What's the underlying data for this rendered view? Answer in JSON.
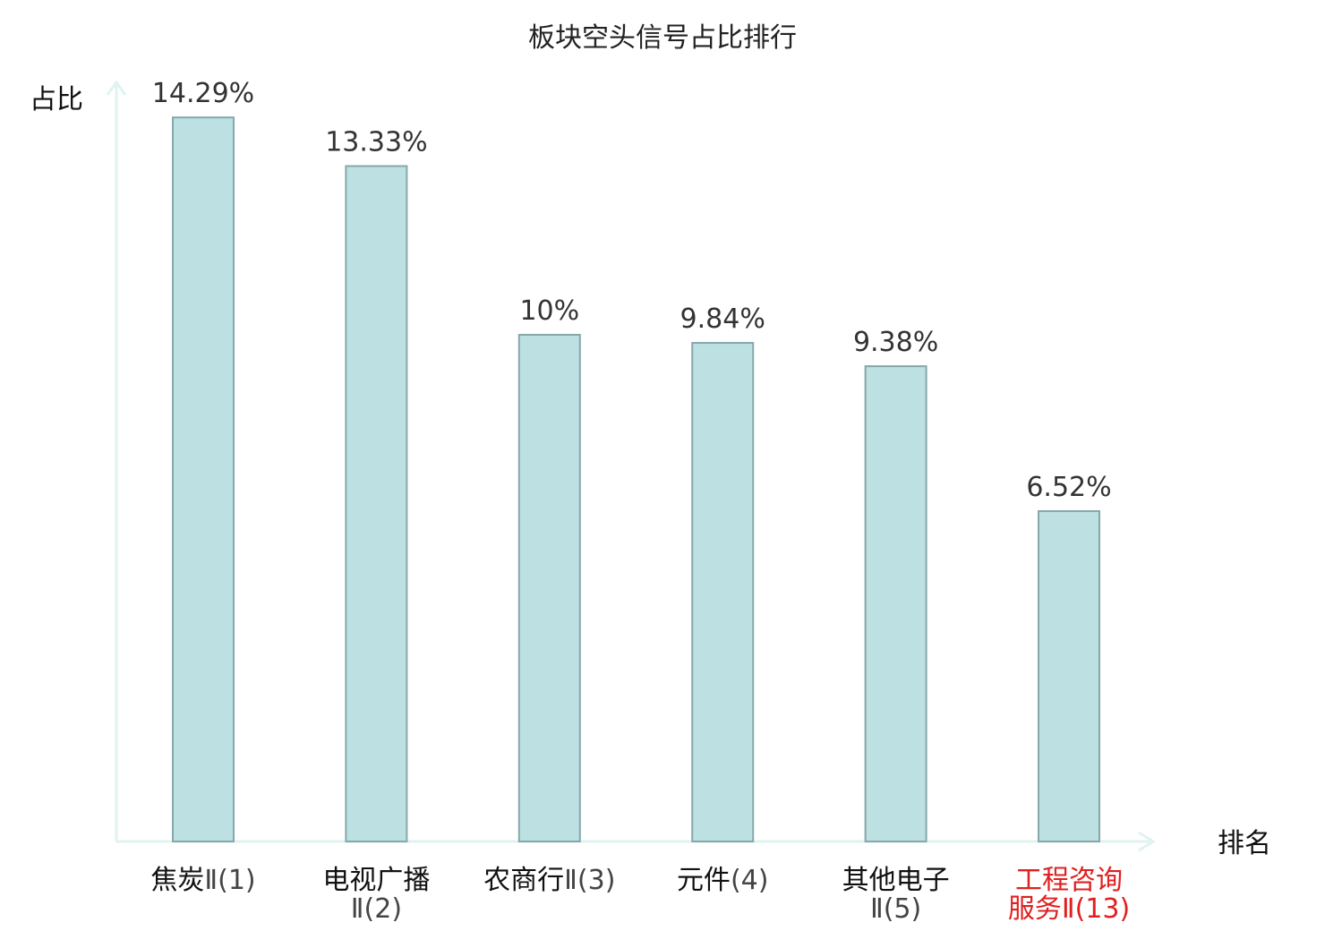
{
  "chart_data": {
    "type": "bar",
    "title": "板块空头信号占比排行",
    "ylabel": "占比",
    "xlabel": "排名",
    "ylim": [
      0,
      15
    ],
    "grid": false,
    "categories": [
      {
        "name": "焦炭",
        "rank": "Ⅱ(1)",
        "highlight": false
      },
      {
        "name": "电视广播",
        "rank": "Ⅱ(2)",
        "highlight": false
      },
      {
        "name": "农商行",
        "rank": "Ⅱ(3)",
        "highlight": false
      },
      {
        "name": "元件",
        "rank": "(4)",
        "highlight": false
      },
      {
        "name": "其他电子",
        "rank": "Ⅱ(5)",
        "highlight": false
      },
      {
        "name": "工程咨询服务",
        "rank": "Ⅱ(13)",
        "highlight": true
      }
    ],
    "values": [
      14.29,
      13.33,
      10,
      9.84,
      9.38,
      6.52
    ],
    "value_labels": [
      "14.29%",
      "13.33%",
      "10%",
      "9.84%",
      "9.38%",
      "6.52%"
    ],
    "colors": {
      "bar_fill": "#bde0e3",
      "bar_stroke": "#86a8aa",
      "axis": "#e0f3f1",
      "label": "#111111",
      "rank_text": "#444444",
      "highlight": "#e02020"
    }
  }
}
